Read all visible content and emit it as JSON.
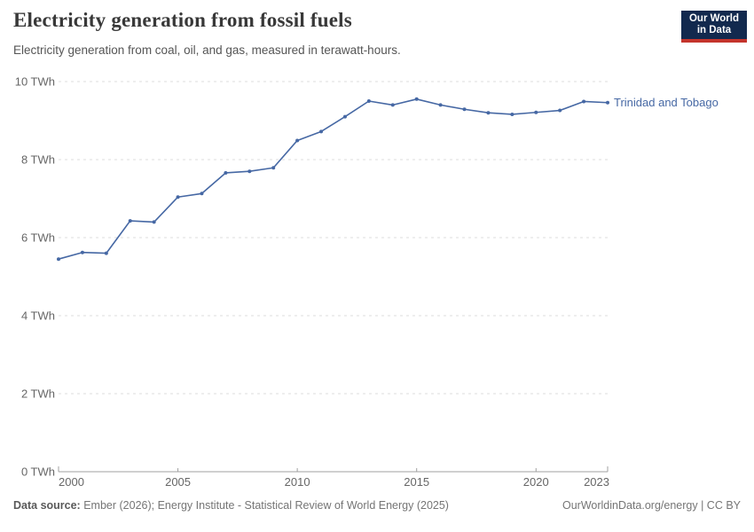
{
  "header": {
    "title": "Electricity generation from fossil fuels",
    "subtitle": "Electricity generation from coal, oil, and gas, measured in terawatt-hours."
  },
  "logo": {
    "line1": "Our World",
    "line2": "in Data"
  },
  "footer": {
    "source_label": "Data source:",
    "source_text": " Ember (2026); Energy Institute - Statistical Review of World Energy (2025)",
    "credit": "OurWorldinData.org/energy | CC BY"
  },
  "colors": {
    "line": "#4668a4",
    "grid": "#dcdcdc",
    "axis": "#a0a0a0",
    "axis_text": "#666666",
    "logo_navy": "#12294e",
    "logo_red": "#c4342c"
  },
  "chart_data": {
    "type": "line",
    "title": "Electricity generation from fossil fuels",
    "subtitle": "Electricity generation from coal, oil, and gas, measured in terawatt-hours.",
    "xlabel": "",
    "ylabel": "",
    "xlim": [
      2000,
      2023
    ],
    "ylim": [
      0,
      10
    ],
    "x_ticks": [
      2000,
      2005,
      2010,
      2015,
      2020,
      2023
    ],
    "y_ticks": [
      0,
      2,
      4,
      6,
      8,
      10
    ],
    "y_tick_suffix": " TWh",
    "grid": "horizontal-dashed",
    "legend_position": "line-end-label",
    "series": [
      {
        "name": "Trinidad and Tobago",
        "color": "#4668a4",
        "x": [
          2000,
          2001,
          2002,
          2003,
          2004,
          2005,
          2006,
          2007,
          2008,
          2009,
          2010,
          2011,
          2012,
          2013,
          2014,
          2015,
          2016,
          2017,
          2018,
          2019,
          2020,
          2021,
          2022,
          2023
        ],
        "values": [
          5.45,
          5.62,
          5.6,
          6.43,
          6.4,
          7.04,
          7.13,
          7.66,
          7.7,
          7.79,
          8.49,
          8.72,
          9.1,
          9.5,
          9.4,
          9.55,
          9.4,
          9.29,
          9.2,
          9.16,
          9.21,
          9.26,
          9.49,
          9.46
        ]
      }
    ]
  }
}
